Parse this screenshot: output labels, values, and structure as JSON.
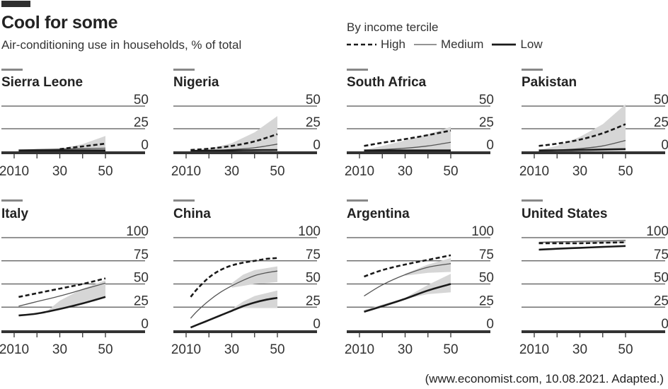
{
  "header": {
    "title": "Cool for some",
    "subtitle": "Air-conditioning use in households, % of total"
  },
  "legend": {
    "title": "By income tercile",
    "items": [
      {
        "label": "High",
        "style": "dashed"
      },
      {
        "label": "Medium",
        "style": "thin"
      },
      {
        "label": "Low",
        "style": "thick"
      }
    ]
  },
  "source": "(www.economist.com, 10.08.2021. Adapted.)",
  "colors": {
    "line": "#1a1a1a",
    "medium_line": "#555555",
    "band": "#d6d6d6",
    "grid": "#555555",
    "axis": "#333333",
    "title_bar": "#888888"
  },
  "chart_data": [
    {
      "type": "line",
      "title": "Sierra Leone",
      "row": 0,
      "col": 0,
      "xlabel": "",
      "ylabel": "% of total",
      "xlim": [
        2010,
        2050
      ],
      "ylim": [
        0,
        50
      ],
      "x_ticks": [
        2010,
        2020,
        2030,
        2040,
        2050
      ],
      "x_tick_labels": [
        "2010",
        "",
        "30",
        "",
        "50"
      ],
      "y_ticks": [
        0,
        25,
        50
      ],
      "y_tick_labels": [
        "0",
        "25",
        "50"
      ],
      "x": [
        2012,
        2020,
        2030,
        2040,
        2050
      ],
      "series": [
        {
          "name": "High",
          "style": "dashed",
          "values": [
            null,
            null,
            2.5,
            5.5,
            8.5
          ]
        },
        {
          "name": "Medium",
          "style": "thin",
          "values": [
            1.5,
            2,
            2.5,
            3,
            3.5
          ]
        },
        {
          "name": "Low",
          "style": "thick",
          "values": [
            1,
            1,
            1,
            1,
            1
          ]
        }
      ],
      "band": {
        "x": [
          2012,
          2030,
          2040,
          2050
        ],
        "low": [
          1,
          1,
          1,
          1
        ],
        "high": [
          1.5,
          3,
          8,
          17
        ]
      }
    },
    {
      "type": "line",
      "title": "Nigeria",
      "row": 0,
      "col": 1,
      "xlim": [
        2010,
        2050
      ],
      "ylim": [
        0,
        50
      ],
      "x_ticks": [
        2010,
        2020,
        2030,
        2040,
        2050
      ],
      "x_tick_labels": [
        "2010",
        "",
        "30",
        "",
        "50"
      ],
      "y_ticks": [
        0,
        25,
        50
      ],
      "y_tick_labels": [
        "0",
        "25",
        "50"
      ],
      "x": [
        2012,
        2020,
        2030,
        2040,
        2050
      ],
      "series": [
        {
          "name": "High",
          "style": "dashed",
          "values": [
            1.5,
            3,
            6,
            11,
            19
          ]
        },
        {
          "name": "Medium",
          "style": "thin",
          "values": [
            0.5,
            1,
            2,
            4,
            8
          ]
        },
        {
          "name": "Low",
          "style": "thick",
          "values": [
            0.5,
            0.8,
            1,
            1.3,
            1.5
          ]
        }
      ],
      "band": {
        "x": [
          2012,
          2020,
          2030,
          2040,
          2050
        ],
        "low": [
          0.5,
          0.5,
          0.5,
          0.5,
          0.5
        ],
        "high": [
          1.5,
          3,
          9,
          21,
          39
        ]
      }
    },
    {
      "type": "line",
      "title": "South Africa",
      "row": 0,
      "col": 2,
      "xlim": [
        2010,
        2050
      ],
      "ylim": [
        0,
        50
      ],
      "x_ticks": [
        2010,
        2020,
        2030,
        2040,
        2050
      ],
      "x_tick_labels": [
        "2010",
        "",
        "30",
        "",
        "50"
      ],
      "y_ticks": [
        0,
        25,
        50
      ],
      "y_tick_labels": [
        "0",
        "25",
        "50"
      ],
      "x": [
        2012,
        2020,
        2030,
        2040,
        2050
      ],
      "series": [
        {
          "name": "High",
          "style": "dashed",
          "values": [
            6,
            9.5,
            13.5,
            18,
            23
          ]
        },
        {
          "name": "Medium",
          "style": "thin",
          "values": [
            1,
            2,
            3.5,
            6,
            10
          ]
        },
        {
          "name": "Low",
          "style": "thick",
          "values": [
            1,
            1,
            1,
            1,
            1
          ]
        }
      ],
      "band": {
        "x": [
          2012,
          2020,
          2030,
          2040,
          2050
        ],
        "low": [
          1,
          1,
          1,
          1,
          1
        ],
        "high": [
          1.5,
          6,
          12,
          19,
          27
        ]
      }
    },
    {
      "type": "line",
      "title": "Pakistan",
      "row": 0,
      "col": 3,
      "xlim": [
        2010,
        2050
      ],
      "ylim": [
        0,
        50
      ],
      "x_ticks": [
        2010,
        2020,
        2030,
        2040,
        2050
      ],
      "x_tick_labels": [
        "2010",
        "",
        "30",
        "",
        "50"
      ],
      "y_ticks": [
        0,
        25,
        50
      ],
      "y_tick_labels": [
        "0",
        "25",
        "50"
      ],
      "x": [
        2012,
        2020,
        2030,
        2040,
        2050
      ],
      "series": [
        {
          "name": "High",
          "style": "dashed",
          "values": [
            6,
            8.5,
            13,
            20,
            30
          ]
        },
        {
          "name": "Medium",
          "style": "thin",
          "values": [
            1,
            1.5,
            3,
            6,
            12
          ]
        },
        {
          "name": "Low",
          "style": "thick",
          "values": [
            1,
            1.2,
            1.5,
            2,
            2.5
          ]
        }
      ],
      "band": {
        "x": [
          2012,
          2020,
          2030,
          2040,
          2050
        ],
        "low": [
          0.5,
          0.5,
          0.5,
          0.5,
          0.5
        ],
        "high": [
          1.5,
          6,
          16,
          30,
          52
        ]
      }
    },
    {
      "type": "line",
      "title": "Italy",
      "row": 1,
      "col": 0,
      "xlim": [
        2010,
        2050
      ],
      "ylim": [
        0,
        100
      ],
      "x_ticks": [
        2010,
        2020,
        2030,
        2040,
        2050
      ],
      "x_tick_labels": [
        "2010",
        "",
        "30",
        "",
        "50"
      ],
      "y_ticks": [
        0,
        25,
        50,
        75,
        100
      ],
      "y_tick_labels": [
        "0",
        "25",
        "50",
        "75",
        "100"
      ],
      "x": [
        2012,
        2020,
        2030,
        2040,
        2050
      ],
      "series": [
        {
          "name": "High",
          "style": "dashed",
          "values": [
            36,
            40,
            45,
            50,
            56
          ]
        },
        {
          "name": "Medium",
          "style": "thin",
          "values": [
            26,
            31,
            37,
            44,
            51
          ]
        },
        {
          "name": "Low",
          "style": "thick",
          "values": [
            16,
            18,
            23,
            29,
            36
          ]
        }
      ],
      "band": {
        "x": [
          2025,
          2030,
          2040,
          2050
        ],
        "low": [
          21,
          23,
          29,
          36
        ],
        "high": [
          22,
          32,
          45,
          54
        ]
      }
    },
    {
      "type": "line",
      "title": "China",
      "row": 1,
      "col": 1,
      "xlim": [
        2010,
        2050
      ],
      "ylim": [
        0,
        100
      ],
      "x_ticks": [
        2010,
        2020,
        2030,
        2040,
        2050
      ],
      "x_tick_labels": [
        "2010",
        "",
        "30",
        "",
        "50"
      ],
      "y_ticks": [
        0,
        25,
        50,
        75,
        100
      ],
      "y_tick_labels": [
        "0",
        "25",
        "50",
        "75",
        "100"
      ],
      "x": [
        2012,
        2015,
        2020,
        2025,
        2030,
        2035,
        2040,
        2045,
        2050
      ],
      "series": [
        {
          "name": "High",
          "style": "dashed",
          "values": [
            36,
            45,
            57,
            65,
            70,
            73,
            75,
            77,
            78
          ]
        },
        {
          "name": "Medium",
          "style": "thin",
          "values": [
            13,
            21,
            32,
            41,
            48,
            54,
            59,
            62,
            64
          ]
        },
        {
          "name": "Low",
          "style": "thick",
          "values": [
            3,
            6,
            11,
            16,
            21,
            26,
            30,
            33,
            35
          ]
        }
      ],
      "band_medium": {
        "x": [
          2030,
          2035,
          2040,
          2045,
          2050
        ],
        "low": [
          46,
          48,
          50,
          51,
          52
        ],
        "high": [
          51,
          60,
          65,
          67,
          69
        ]
      },
      "band_low": {
        "x": [
          2030,
          2035,
          2040,
          2045,
          2050
        ],
        "low": [
          22,
          24,
          24,
          24,
          24
        ],
        "high": [
          23,
          31,
          37,
          40,
          43
        ]
      }
    },
    {
      "type": "line",
      "title": "Argentina",
      "row": 1,
      "col": 2,
      "xlim": [
        2010,
        2050
      ],
      "ylim": [
        0,
        100
      ],
      "x_ticks": [
        2010,
        2020,
        2030,
        2040,
        2050
      ],
      "x_tick_labels": [
        "2010",
        "",
        "30",
        "",
        "50"
      ],
      "y_ticks": [
        0,
        25,
        50,
        75,
        100
      ],
      "y_tick_labels": [
        "0",
        "25",
        "50",
        "75",
        "100"
      ],
      "x": [
        2012,
        2020,
        2030,
        2040,
        2050
      ],
      "series": [
        {
          "name": "High",
          "style": "dashed",
          "values": [
            58,
            65,
            71,
            76,
            81
          ]
        },
        {
          "name": "Medium",
          "style": "thin",
          "values": [
            37,
            49,
            60,
            68,
            72
          ]
        },
        {
          "name": "Low",
          "style": "thick",
          "values": [
            20,
            26,
            34,
            43,
            50
          ]
        }
      ],
      "band_medium": {
        "x": [
          2030,
          2040,
          2050
        ],
        "low": [
          59,
          62,
          63
        ],
        "high": [
          61,
          71,
          78
        ]
      },
      "band_low": {
        "x": [
          2012,
          2030,
          2040,
          2050
        ],
        "low": [
          20,
          34,
          39,
          41
        ],
        "high": [
          22,
          35,
          49,
          61
        ]
      }
    },
    {
      "type": "line",
      "title": "United States",
      "row": 1,
      "col": 3,
      "xlim": [
        2010,
        2050
      ],
      "ylim": [
        0,
        100
      ],
      "x_ticks": [
        2010,
        2020,
        2030,
        2040,
        2050
      ],
      "x_tick_labels": [
        "2010",
        "",
        "30",
        "",
        "50"
      ],
      "y_ticks": [
        0,
        25,
        50,
        75,
        100
      ],
      "y_tick_labels": [
        "0",
        "25",
        "50",
        "75",
        "100"
      ],
      "x": [
        2012,
        2020,
        2030,
        2040,
        2050
      ],
      "series": [
        {
          "name": "High",
          "style": "dashed",
          "values": [
            94,
            94,
            94,
            94.5,
            95
          ]
        },
        {
          "name": "Medium",
          "style": "thin",
          "values": [
            95,
            95.5,
            96,
            96.5,
            97
          ]
        },
        {
          "name": "Low",
          "style": "thick",
          "values": [
            87,
            88,
            89,
            90,
            91
          ]
        }
      ],
      "band": {
        "x": [
          2012,
          2050
        ],
        "low": [
          94,
          94
        ],
        "high": [
          95,
          97
        ]
      }
    }
  ]
}
